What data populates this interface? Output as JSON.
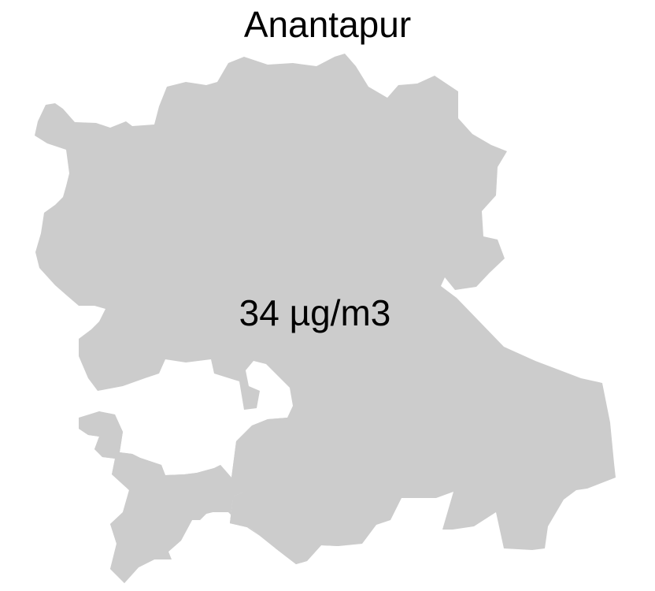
{
  "map": {
    "title": "Anantapur",
    "value_label": "34 µg/m3",
    "region_fill": "#cccccc",
    "background": "#ffffff"
  }
}
